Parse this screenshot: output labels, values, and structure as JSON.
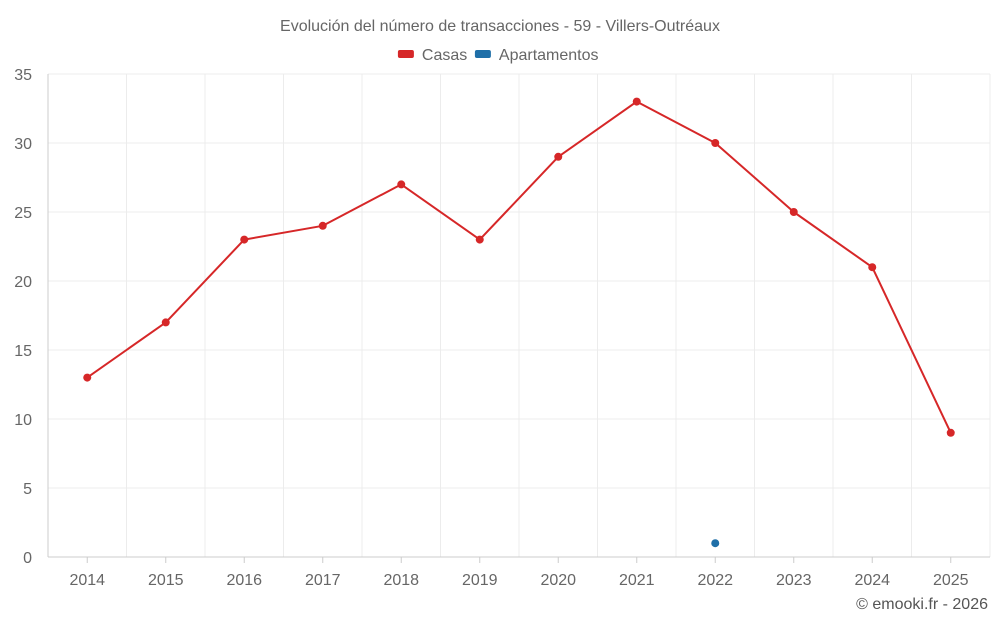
{
  "chart_data": {
    "type": "line",
    "title": "Evolución del número de transacciones - 59 - Villers-Outréaux",
    "categories": [
      "2014",
      "2015",
      "2016",
      "2017",
      "2018",
      "2019",
      "2020",
      "2021",
      "2022",
      "2023",
      "2024",
      "2025"
    ],
    "series": [
      {
        "name": "Casas",
        "color": "#d62728",
        "values": [
          13,
          17,
          23,
          24,
          27,
          23,
          29,
          33,
          30,
          25,
          21,
          9
        ]
      },
      {
        "name": "Apartamentos",
        "color": "#1f6fa8",
        "values": [
          null,
          null,
          null,
          null,
          null,
          null,
          null,
          null,
          1,
          null,
          null,
          null
        ]
      }
    ],
    "ylim": [
      0,
      35
    ],
    "yticks": [
      0,
      5,
      10,
      15,
      20,
      25,
      30,
      35
    ],
    "grid": true,
    "legend": "top-center",
    "xlabel": "",
    "ylabel": ""
  },
  "credit": "© emooki.fr - 2026"
}
